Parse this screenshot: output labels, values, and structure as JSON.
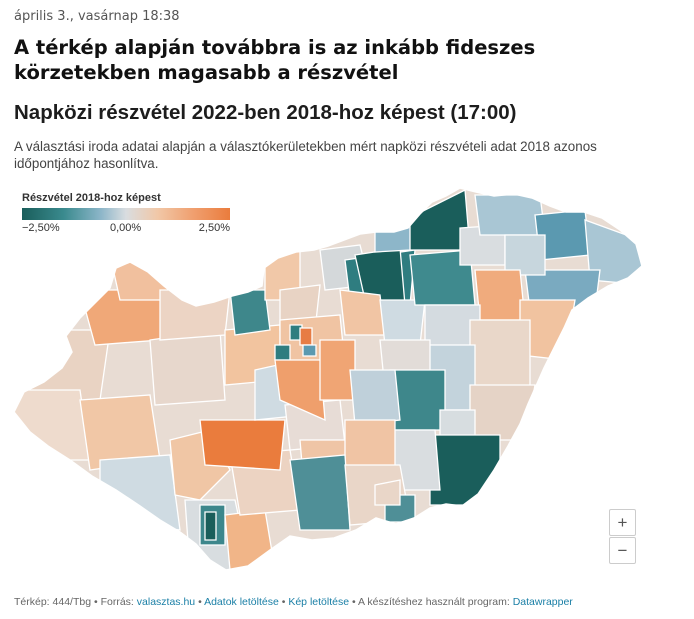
{
  "timestamp": "április 3., vasárnap 18:38",
  "headline": "A térkép alapján továbbra is az inkább fideszes körzetekben magasabb a részvétel",
  "chart": {
    "title": "Napközi részvétel 2022-ben 2018-hoz képest (17:00)",
    "description": "A választási iroda adatai alapján a választókerületekben mért napközi részvételi adat 2018 azonos időpontjához hasonlítva."
  },
  "legend": {
    "title": "Részvétel 2018-hoz képest",
    "min_label": "−2,50%",
    "mid_label": "0,00%",
    "max_label": "2,50%",
    "range": [
      -2.5,
      2.5
    ],
    "colors": [
      "#1a5e5b",
      "#8db6c9",
      "#d9dde0",
      "#f0a070",
      "#ea7c3d"
    ]
  },
  "zoom": {
    "in": "+",
    "out": "−"
  },
  "footer": {
    "map_credit": "Térkép: 444/Tbg",
    "source_label": "Forrás:",
    "source_link": "valasztas.hu",
    "data_link": "Adatok letöltése",
    "image_link": "Kép letöltése",
    "tool_label": "A készítéshez használt program:",
    "tool_link": "Datawrapper",
    "sep": "•"
  }
}
